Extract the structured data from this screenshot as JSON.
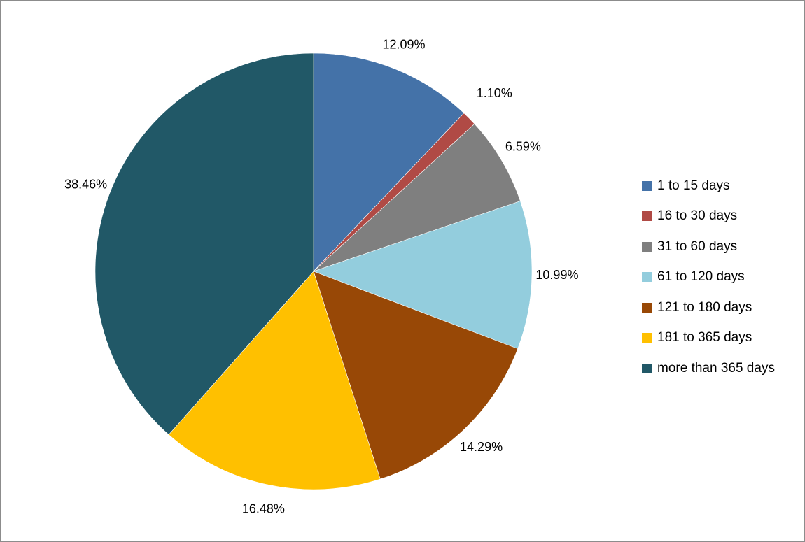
{
  "chart_data": {
    "type": "pie",
    "title": "",
    "categories": [
      "1 to 15 days",
      "16 to 30 days",
      "31 to 60 days",
      "61 to 120 days",
      "121 to 180 days",
      "181 to 365 days",
      "more than 365 days"
    ],
    "values": [
      12.09,
      1.1,
      6.59,
      10.99,
      14.29,
      16.48,
      38.46
    ],
    "data_labels": [
      "12.09%",
      "1.10%",
      "6.59%",
      "10.99%",
      "14.29%",
      "16.48%",
      "38.46%"
    ],
    "colors": [
      "#4472a8",
      "#b04a45",
      "#7f7f7f",
      "#93cddd",
      "#984806",
      "#ffc000",
      "#215867"
    ],
    "start_angle": "12 o'clock",
    "direction": "clockwise",
    "legend_position": "right"
  }
}
